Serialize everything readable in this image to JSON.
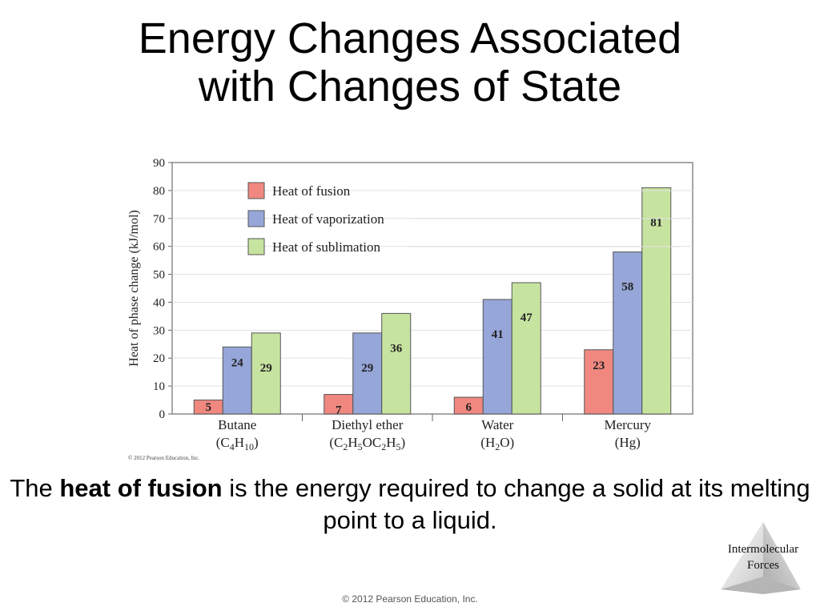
{
  "slide": {
    "title_line1": "Energy Changes Associated",
    "title_line2": "with Changes of State",
    "caption_pre": "The ",
    "caption_bold": "heat of fusion",
    "caption_post": " is the energy required to change a solid at its melting point to a liquid.",
    "footer": "© 2012 Pearson Education, Inc.",
    "badge_line1": "Intermolecular",
    "badge_line2": "Forces"
  },
  "chart_data": {
    "type": "bar",
    "title": "",
    "ylabel": "Heat of phase change (kJ/mol)",
    "xlabel": "",
    "ylim": [
      0,
      90
    ],
    "yticks": [
      0,
      10,
      20,
      30,
      40,
      50,
      60,
      70,
      80,
      90
    ],
    "grid": true,
    "legend_position": "top-left",
    "copyright": "© 2012 Pearson Education, Inc.",
    "categories": [
      {
        "name": "Butane",
        "formula": [
          "(C",
          {
            "sub": "4"
          },
          "H",
          {
            "sub": "10"
          },
          ")"
        ]
      },
      {
        "name": "Diethyl ether",
        "formula": [
          "(C",
          {
            "sub": "2"
          },
          "H",
          {
            "sub": "5"
          },
          "OC",
          {
            "sub": "2"
          },
          "H",
          {
            "sub": "5"
          },
          ")"
        ]
      },
      {
        "name": "Water",
        "formula": [
          "(H",
          {
            "sub": "2"
          },
          "O)"
        ]
      },
      {
        "name": "Mercury",
        "formula": [
          "(Hg)"
        ]
      }
    ],
    "series": [
      {
        "name": "Heat of fusion",
        "color": "#f08880",
        "values": [
          5,
          7,
          6,
          23
        ]
      },
      {
        "name": "Heat of vaporization",
        "color": "#97a6d8",
        "values": [
          24,
          29,
          41,
          58
        ]
      },
      {
        "name": "Heat of sublimation",
        "color": "#c7e3a0",
        "values": [
          29,
          36,
          47,
          81
        ]
      }
    ]
  }
}
